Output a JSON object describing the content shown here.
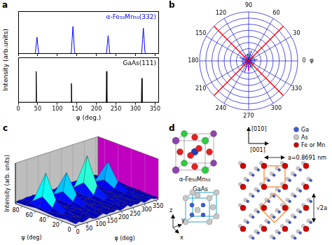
{
  "chart_data": [
    {
      "type": "line",
      "panel_label": "a",
      "annotation": "α-Fe₅₀Mn₅₀(332)",
      "x": [
        0,
        42,
        44,
        46,
        48,
        50,
        52,
        54,
        134,
        136,
        138,
        140,
        142,
        144,
        146,
        224,
        226,
        228,
        230,
        232,
        234,
        236,
        314,
        316,
        318,
        320,
        322,
        324,
        326,
        360
      ],
      "series": [
        {
          "color": "#0000ff",
          "values": [
            0,
            0,
            0.05,
            0.3,
            0.55,
            0.3,
            0.05,
            0,
            0,
            0.08,
            0.5,
            0.9,
            0.5,
            0.08,
            0,
            0,
            0.05,
            0.33,
            0.6,
            0.33,
            0.05,
            0,
            0,
            0.07,
            0.47,
            0.85,
            0.47,
            0.07,
            0,
            0
          ]
        }
      ],
      "xlim": [
        0,
        360
      ],
      "xticks": [
        0,
        50,
        100,
        150,
        200,
        250,
        300,
        350
      ],
      "ylim": [
        0,
        1.4
      ],
      "tick_labels": false
    },
    {
      "type": "line",
      "annotation": "GaAs(111)",
      "x": [
        0,
        45,
        46,
        47,
        135,
        136,
        137,
        225,
        226,
        227,
        315,
        316,
        317,
        360
      ],
      "series": [
        {
          "color": "#000000",
          "values": [
            0,
            0,
            0.9,
            0,
            0,
            0.55,
            0,
            0,
            0.9,
            0,
            0,
            0.7,
            0,
            0
          ]
        }
      ],
      "x_label": "φ (deg.)",
      "y_label": "Intensity (arb.units)",
      "xlim": [
        0,
        360
      ],
      "xticks": [
        0,
        50,
        100,
        150,
        200,
        250,
        300,
        350
      ],
      "ylim": [
        0,
        1.3
      ],
      "tick_labels": "x"
    },
    {
      "type": "polar",
      "panel_label": "b",
      "angle_label": "φ",
      "angle_ticks": [
        0,
        30,
        60,
        90,
        120,
        150,
        180,
        210,
        240,
        270,
        300,
        330
      ],
      "rlim": [
        0,
        1
      ],
      "rticks": [
        0.125,
        0.25,
        0.375,
        0.5,
        0.625,
        0.75,
        0.875,
        1
      ],
      "grid": true,
      "series": [
        {
          "color": "#ff0000",
          "angles": [
            45,
            135,
            225,
            315
          ],
          "values": [
            1,
            1,
            1,
            1
          ]
        },
        {
          "color": "#0000ff",
          "angles": [
            10,
            40,
            75,
            100,
            160,
            200,
            250,
            290,
            335
          ],
          "values": [
            0.18,
            0.12,
            0.22,
            0.15,
            0.2,
            0.14,
            0.25,
            0.16,
            0.12
          ]
        },
        {
          "color": "#00aa00",
          "angles": [
            25,
            85,
            130,
            185,
            240,
            300,
            350
          ],
          "values": [
            0.12,
            0.2,
            0.1,
            0.16,
            0.13,
            0.18,
            0.1
          ]
        },
        {
          "color": "#cc00cc",
          "angles": [
            60,
            115,
            170,
            215,
            270,
            320
          ],
          "values": [
            0.1,
            0.14,
            0.12,
            0.18,
            0.2,
            0.12
          ]
        }
      ]
    },
    {
      "type": "surface",
      "panel_label": "c",
      "x": [
        0,
        15,
        30,
        45,
        60,
        75,
        90,
        105,
        120,
        135,
        150,
        165,
        180,
        195,
        210,
        225,
        240,
        255,
        270,
        285,
        300,
        315,
        330,
        345,
        360
      ],
      "y": [
        0,
        15,
        30,
        45,
        60,
        75,
        90
      ],
      "z": [
        [
          0.05,
          0.08,
          0.04,
          0.06,
          0.1,
          0.05,
          0.03,
          0.07,
          0.09,
          0.04,
          0.06,
          0.05,
          0.08,
          0.03,
          0.06,
          0.1,
          0.04,
          0.07,
          0.05,
          0.09,
          0.03,
          0.06,
          0.08,
          0.04,
          0.05
        ],
        [
          0.07,
          0.04,
          0.09,
          0.05,
          0.03,
          0.08,
          0.06,
          0.1,
          0.04,
          0.07,
          0.05,
          0.09,
          0.03,
          0.06,
          0.08,
          0.05,
          0.1,
          0.04,
          0.07,
          0.03,
          0.09,
          0.05,
          0.06,
          0.08,
          0.04
        ],
        [
          0.04,
          0.1,
          0.06,
          0.12,
          0.05,
          0.07,
          0.09,
          0.04,
          0.08,
          0.11,
          0.06,
          0.05,
          0.1,
          0.04,
          0.07,
          0.13,
          0.05,
          0.08,
          0.06,
          0.04,
          0.09,
          0.12,
          0.05,
          0.07,
          0.06
        ],
        [
          0.06,
          0.05,
          0.12,
          0.28,
          0.1,
          0.06,
          0.04,
          0.08,
          0.11,
          0.25,
          0.09,
          0.05,
          0.07,
          0.06,
          0.1,
          0.3,
          0.12,
          0.05,
          0.08,
          0.04,
          0.1,
          0.24,
          0.09,
          0.06,
          0.05
        ],
        [
          0.08,
          0.06,
          0.3,
          0.85,
          0.28,
          0.07,
          0.05,
          0.09,
          0.26,
          0.7,
          0.24,
          0.06,
          0.04,
          0.08,
          0.32,
          0.95,
          0.3,
          0.07,
          0.05,
          0.09,
          0.22,
          0.65,
          0.2,
          0.06,
          0.08
        ],
        [
          0.05,
          0.09,
          0.1,
          0.22,
          0.08,
          0.05,
          0.07,
          0.04,
          0.1,
          0.2,
          0.07,
          0.09,
          0.05,
          0.06,
          0.11,
          0.25,
          0.09,
          0.04,
          0.06,
          0.08,
          0.09,
          0.18,
          0.07,
          0.05,
          0.06
        ],
        [
          0.04,
          0.06,
          0.05,
          0.07,
          0.03,
          0.08,
          0.05,
          0.06,
          0.04,
          0.09,
          0.05,
          0.03,
          0.07,
          0.05,
          0.06,
          0.08,
          0.04,
          0.06,
          0.05,
          0.07,
          0.04,
          0.06,
          0.05,
          0.08,
          0.04
        ]
      ],
      "x_label": "φ (deg)",
      "y_label": "ψ (deg)",
      "z_label": "Intensity (arb. units)",
      "xlim": [
        0,
        360
      ],
      "xticks": [
        0,
        50,
        100,
        150,
        200,
        250,
        300,
        350
      ],
      "ylim": [
        0,
        90
      ],
      "yticks": [
        0,
        20,
        40,
        60,
        80
      ],
      "zlim": [
        0,
        1
      ]
    }
  ],
  "diagram": {
    "panel_label": "d",
    "directions": [
      "[010]",
      "[001]"
    ],
    "structures": [
      "α-Fe₅₀Mn₅₀",
      "GaAs"
    ],
    "legend": [
      {
        "label": "Ga",
        "color": "#3d5bd6"
      },
      {
        "label": "As",
        "color": "#c8c8c8"
      },
      {
        "label": "Fe or Mn",
        "color": "#d40000"
      }
    ],
    "lattice_label": "a=0.8691 nm",
    "diagonal_label": "√2a",
    "axes": [
      "z",
      "y",
      "x"
    ]
  }
}
